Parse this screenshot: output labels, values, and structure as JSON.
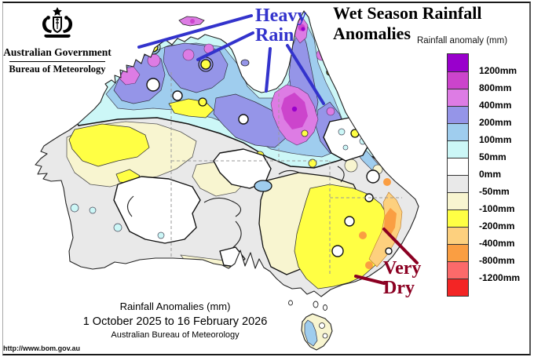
{
  "header": {
    "government": "Australian Government",
    "bureau": "Bureau of Meteorology"
  },
  "title": {
    "line1": "Wet Season Rainfall",
    "line2": "Anomalies"
  },
  "annotations": {
    "heavy_rain": {
      "line1": "Heavy",
      "line2": "Rain",
      "color": "#3333cc"
    },
    "very_dry": {
      "line1": "Very",
      "line2": "Dry",
      "color": "#8b0022"
    }
  },
  "legend": {
    "title": "Rainfall anomaly (mm)",
    "labels": [
      "1200mm",
      "800mm",
      "400mm",
      "200mm",
      "100mm",
      "50mm",
      "0mm",
      "-50mm",
      "-100mm",
      "-200mm",
      "-400mm",
      "-800mm",
      "-1200mm"
    ],
    "colors": [
      "#9900cc",
      "#cc44cc",
      "#dd7ce4",
      "#9595e8",
      "#9fcdee",
      "#ccf7f7",
      "#ffffff",
      "#e9e9e9",
      "#f8f5d0",
      "#ffff44",
      "#fdd07e",
      "#fa9e42",
      "#fb6a6a",
      "#f32525"
    ]
  },
  "caption": {
    "line1": "Rainfall Anomalies (mm)",
    "line2": "1 October 2025 to 16 February 2026",
    "line3": "Australian Bureau of Meteorology"
  },
  "footer": {
    "url": "http://www.bom.gov.au"
  }
}
